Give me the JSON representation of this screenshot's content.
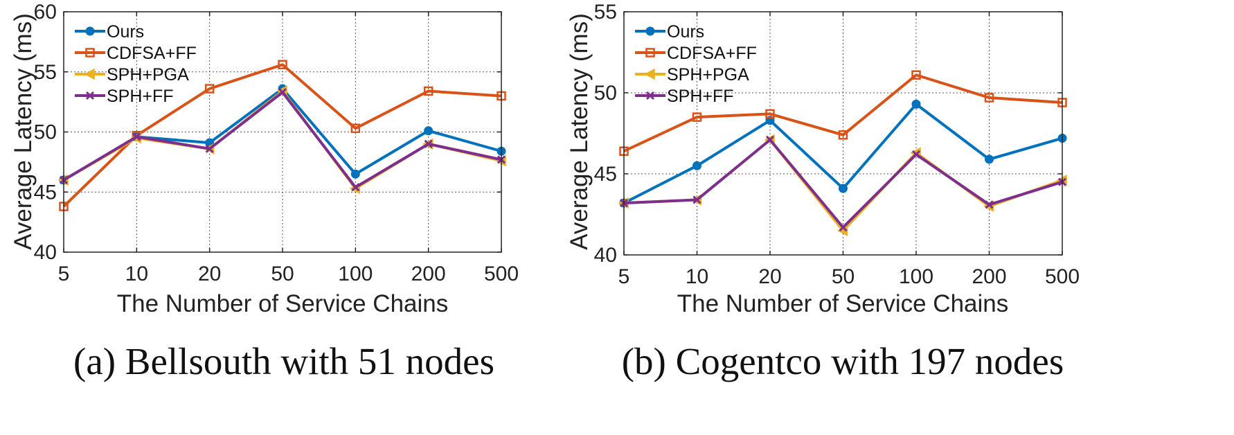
{
  "colors": {
    "Ours": "#0072BD",
    "CDFSA+FF": "#D95319",
    "SPH+PGA": "#EDB120",
    "SPH+FF": "#7E2F8E"
  },
  "chart_data": [
    {
      "type": "line",
      "caption": "(a) Bellsouth with 51 nodes",
      "xlabel": "The Number of Service Chains",
      "ylabel": "Average Latency (ms)",
      "categories": [
        "5",
        "10",
        "20",
        "50",
        "100",
        "200",
        "500"
      ],
      "ylim": [
        40,
        60
      ],
      "yticks": [
        40,
        45,
        50,
        55,
        60
      ],
      "grid": true,
      "legend_position": "top-left",
      "series": [
        {
          "name": "Ours",
          "values": [
            46.0,
            49.6,
            49.1,
            53.6,
            46.5,
            50.1,
            48.4
          ]
        },
        {
          "name": "CDFSA+FF",
          "values": [
            43.8,
            49.7,
            53.6,
            55.6,
            50.3,
            53.4,
            53.0
          ]
        },
        {
          "name": "SPH+PGA",
          "values": [
            46.0,
            49.5,
            48.6,
            53.4,
            45.3,
            49.0,
            47.6
          ]
        },
        {
          "name": "SPH+FF",
          "values": [
            46.0,
            49.6,
            48.6,
            53.3,
            45.4,
            49.0,
            47.7
          ]
        }
      ]
    },
    {
      "type": "line",
      "caption": "(b) Cogentco with 197 nodes",
      "xlabel": "The Number of Service Chains",
      "ylabel": "Average Latency (ms)",
      "categories": [
        "5",
        "10",
        "20",
        "50",
        "100",
        "200",
        "500"
      ],
      "ylim": [
        40,
        55
      ],
      "yticks": [
        40,
        45,
        50,
        55
      ],
      "grid": true,
      "legend_position": "top-left",
      "series": [
        {
          "name": "Ours",
          "values": [
            43.2,
            45.5,
            48.3,
            44.1,
            49.3,
            45.9,
            47.2
          ]
        },
        {
          "name": "CDFSA+FF",
          "values": [
            46.4,
            48.5,
            48.7,
            47.4,
            51.1,
            49.7,
            49.4
          ]
        },
        {
          "name": "SPH+PGA",
          "values": [
            43.2,
            43.4,
            47.1,
            41.5,
            46.3,
            43.0,
            44.6
          ]
        },
        {
          "name": "SPH+FF",
          "values": [
            43.2,
            43.4,
            47.1,
            41.7,
            46.2,
            43.1,
            44.5
          ]
        }
      ]
    }
  ]
}
